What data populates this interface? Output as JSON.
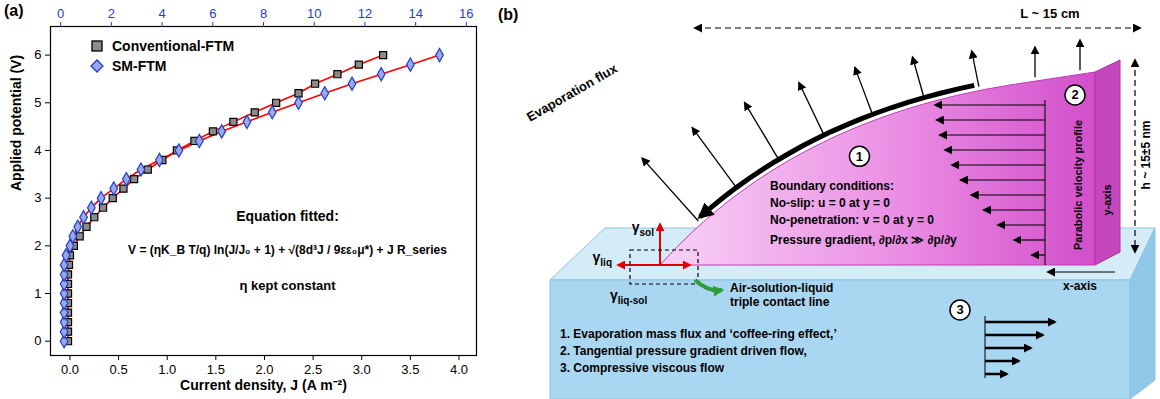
{
  "chart_data": {
    "type": "scatter",
    "title": "(a)",
    "x_label": "Current density, J (A m⁻²)",
    "y_label": "Applied potential (V)",
    "xlim": [
      -0.2,
      4.18
    ],
    "xticks": [
      {
        "value": 0,
        "label": "0.0"
      },
      0.5,
      {
        "value": 1,
        "label": "1.0"
      },
      1.5,
      {
        "value": 2,
        "label": "2.0"
      },
      2.5,
      {
        "value": 3,
        "label": "3.0"
      },
      3.5,
      {
        "value": 4,
        "label": "4.0"
      }
    ],
    "x2lim": [
      -0.4,
      16.4
    ],
    "x2ticks": [
      0,
      2,
      4,
      6,
      8,
      10,
      12,
      14,
      16
    ],
    "ylim": [
      -0.3,
      6.6
    ],
    "yticks": [
      0,
      1,
      2,
      3,
      4,
      5,
      6
    ],
    "grid": false,
    "legend": "upper left",
    "annotations": [
      "Equation fitted:",
      "V = (ηK_B T/q) ln(J/J₀ + 1) + √(8d³J / 9εε₀μ*) + J R_series",
      "η kept constant"
    ],
    "series": [
      {
        "name": "Conventional-FTM",
        "type": "scatter",
        "color": "#000000",
        "marker": "square",
        "x": [
          -0.02,
          -0.02,
          -0.02,
          -0.02,
          -0.02,
          -0.02,
          -0.02,
          -0.02,
          -0.01,
          0.0,
          0.04,
          0.1,
          0.17,
          0.25,
          0.34,
          0.44,
          0.55,
          0.66,
          0.8,
          0.95,
          1.1,
          1.28,
          1.47,
          1.68,
          1.9,
          2.12,
          2.35,
          2.52,
          2.75,
          2.97,
          3.22
        ],
        "values": [
          0,
          0.2,
          0.4,
          0.6,
          0.8,
          1.0,
          1.2,
          1.4,
          1.6,
          1.8,
          2.0,
          2.2,
          2.4,
          2.6,
          2.8,
          3.0,
          3.2,
          3.4,
          3.6,
          3.8,
          4.0,
          4.2,
          4.4,
          4.6,
          4.8,
          5.0,
          5.2,
          5.4,
          5.6,
          5.8,
          6.0
        ]
      },
      {
        "name": "SM-FTM",
        "type": "scatter",
        "color": "#1f3ec9",
        "marker": "diamond",
        "x": [
          -0.06,
          -0.06,
          -0.06,
          -0.06,
          -0.06,
          -0.06,
          -0.06,
          -0.06,
          -0.06,
          -0.04,
          0.0,
          0.03,
          0.08,
          0.14,
          0.22,
          0.32,
          0.45,
          0.58,
          0.73,
          0.92,
          1.12,
          1.33,
          1.56,
          1.82,
          2.08,
          2.35,
          2.62,
          2.9,
          3.2,
          3.5,
          3.8
        ],
        "values": [
          0,
          0.2,
          0.4,
          0.6,
          0.8,
          1.0,
          1.2,
          1.4,
          1.6,
          1.8,
          2.0,
          2.2,
          2.4,
          2.6,
          2.8,
          3.0,
          3.2,
          3.4,
          3.6,
          3.8,
          4.0,
          4.2,
          4.4,
          4.6,
          4.8,
          5.0,
          5.2,
          5.4,
          5.6,
          5.8,
          6.0
        ]
      },
      {
        "type": "line",
        "color": "#ff0000",
        "line_style": "solid",
        "x": [
          -0.02,
          -0.02,
          -0.02,
          -0.02,
          -0.02,
          -0.02,
          -0.02,
          -0.02,
          -0.01,
          0.0,
          0.04,
          0.1,
          0.17,
          0.25,
          0.34,
          0.44,
          0.55,
          0.66,
          0.8,
          0.95,
          1.1,
          1.28,
          1.47,
          1.68,
          1.9,
          2.12,
          2.35,
          2.52,
          2.75,
          2.97,
          3.22
        ],
        "values": [
          0,
          0.2,
          0.4,
          0.6,
          0.8,
          1.0,
          1.2,
          1.4,
          1.6,
          1.8,
          2.0,
          2.2,
          2.4,
          2.6,
          2.8,
          3.0,
          3.2,
          3.4,
          3.6,
          3.8,
          4.0,
          4.2,
          4.4,
          4.6,
          4.8,
          5.0,
          5.2,
          5.4,
          5.6,
          5.8,
          6.0
        ]
      },
      {
        "type": "line",
        "color": "#ff0000",
        "line_style": "solid",
        "x": [
          -0.06,
          -0.06,
          -0.06,
          -0.06,
          -0.06,
          -0.06,
          -0.06,
          -0.06,
          -0.06,
          -0.04,
          0.0,
          0.03,
          0.08,
          0.14,
          0.22,
          0.32,
          0.45,
          0.58,
          0.73,
          0.92,
          1.12,
          1.33,
          1.56,
          1.82,
          2.08,
          2.35,
          2.62,
          2.9,
          3.2,
          3.5,
          3.8
        ],
        "values": [
          0,
          0.2,
          0.4,
          0.6,
          0.8,
          1.0,
          1.2,
          1.4,
          1.6,
          1.8,
          2.0,
          2.2,
          2.4,
          2.6,
          2.8,
          3.0,
          3.2,
          3.4,
          3.6,
          3.8,
          4.0,
          4.2,
          4.4,
          4.6,
          4.8,
          5.0,
          5.2,
          5.4,
          5.6,
          5.8,
          6.0
        ]
      }
    ]
  },
  "diagram": {
    "panel_label": "(b)",
    "length_label": "L ~ 15 cm",
    "height_label": "h ~ 15±5 nm",
    "evaporation_label": "Evaporation flux",
    "profile_label": "Parabolic velocity profile",
    "x_axis_label": "x-axis",
    "y_axis_label": "y-axis",
    "flow_markers": [
      "1",
      "2",
      "3"
    ],
    "boundary_conditions": [
      "Boundary conditions:",
      "No-slip: u = 0 at y = 0",
      "No-penetration: v = 0 at y = 0",
      "Pressure gradient, ∂p/∂x ≫ ∂p/∂y"
    ],
    "surface_tensions": [
      {
        "symbol": "γ",
        "subscript": "sol"
      },
      {
        "symbol": "γ",
        "subscript": "liq"
      },
      {
        "symbol": "γ",
        "subscript": "liq-sol"
      }
    ],
    "contact_line_label": "Air-solution-liquid triple contact line",
    "mechanisms": [
      "1. Evaporation mass flux and ‘coffee-ring effect,’",
      "2. Tangential pressure gradient driven flow,",
      "3. Compressive viscous flow"
    ]
  }
}
